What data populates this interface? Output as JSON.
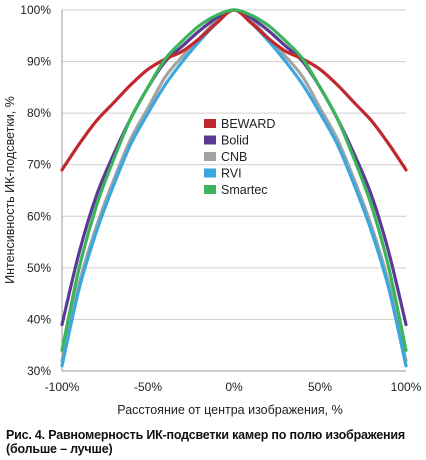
{
  "chart_data": {
    "type": "line",
    "title": "",
    "xlabel": "Расстояние от центра изображения, %",
    "ylabel": "Интенсивность ИК-подсветки, %",
    "xlim": [
      -100,
      100
    ],
    "ylim": [
      30,
      100
    ],
    "x_ticks": [
      "-100%",
      "-50%",
      "0%",
      "50%",
      "100%"
    ],
    "y_ticks": [
      "30%",
      "40%",
      "50%",
      "60%",
      "70%",
      "80%",
      "90%",
      "100%"
    ],
    "grid": "horizontal",
    "legend": "center",
    "x": [
      -100,
      -90,
      -80,
      -70,
      -60,
      -50,
      -40,
      -30,
      -20,
      -10,
      0,
      10,
      20,
      30,
      40,
      50,
      60,
      70,
      80,
      90,
      100
    ],
    "series": [
      {
        "name": "BEWARD",
        "color": "#c0282d",
        "values": [
          69,
          74,
          78.5,
          82,
          85.5,
          88.5,
          90.5,
          92,
          94.5,
          97.5,
          100,
          97.5,
          94.5,
          92,
          90.5,
          88.5,
          85.5,
          82,
          78.5,
          74,
          69
        ]
      },
      {
        "name": "Bolid",
        "color": "#5b3a96",
        "values": [
          39,
          53,
          64,
          72,
          79,
          85,
          90,
          93,
          96,
          98.5,
          100,
          98.5,
          96,
          93,
          90,
          85,
          79,
          72,
          64,
          53,
          39
        ]
      },
      {
        "name": "CNB",
        "color": "#a3a3a3",
        "values": [
          32,
          47,
          58,
          67,
          75,
          81,
          87,
          91,
          94.5,
          98,
          100,
          98,
          94.5,
          91,
          87,
          81,
          75,
          67,
          58,
          47,
          32
        ]
      },
      {
        "name": "RVI",
        "color": "#3aa8dc",
        "values": [
          31,
          46,
          57,
          66,
          74,
          80,
          85.5,
          90,
          94,
          97.5,
          100,
          97.5,
          94,
          90,
          85.5,
          80,
          74,
          66,
          57,
          46,
          31
        ]
      },
      {
        "name": "Smartec",
        "color": "#3cb55a",
        "values": [
          34,
          50,
          62,
          71,
          79,
          85,
          90.5,
          94,
          97,
          99,
          100,
          99,
          97,
          94,
          90.5,
          85,
          79,
          71,
          62,
          50,
          34
        ]
      }
    ]
  },
  "caption": "Рис. 4. Равномерность ИК-подсветки камер по полю изображения (больше – лучше)"
}
